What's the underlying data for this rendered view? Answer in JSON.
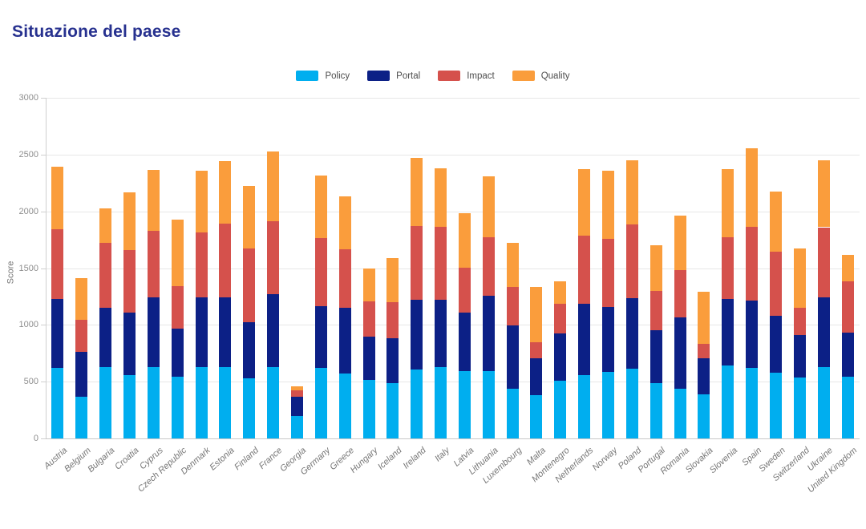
{
  "title": "Situazione del paese",
  "theme": {
    "title_color": "#27318F",
    "gridline_color": "#E7E7E7",
    "axis_color": "#CFCFCF",
    "tick_label_color": "#8E8E8E",
    "category_label_color": "#757575",
    "legend_text_color": "#4D4D4D",
    "background": "#FFFFFF"
  },
  "chart_data": {
    "type": "bar",
    "stacked": true,
    "title": "Situazione del paese",
    "xlabel": "",
    "ylabel": "Score",
    "ylim": [
      0,
      3000
    ],
    "yticks": [
      0,
      500,
      1000,
      1500,
      2000,
      2500,
      3000
    ],
    "grid": true,
    "legend_position": "top-center",
    "categories": [
      "Austria",
      "Belgium",
      "Bulgaria",
      "Croatia",
      "Cyprus",
      "Czech Republic",
      "Denmark",
      "Estonia",
      "Finland",
      "France",
      "Georgia",
      "Germany",
      "Greece",
      "Hungary",
      "Iceland",
      "Ireland",
      "Italy",
      "Latvia",
      "Lithuania",
      "Luxembourg",
      "Malta",
      "Montenegro",
      "Netherlands",
      "Norway",
      "Poland",
      "Portugal",
      "Romania",
      "Slovakia",
      "Slovenia",
      "Spain",
      "Sweden",
      "Switzerland",
      "Ukraine",
      "United Kingdom"
    ],
    "series": [
      {
        "name": "Policy",
        "color": "#00AEEF",
        "values": [
          620,
          365,
          625,
          560,
          630,
          545,
          630,
          630,
          530,
          630,
          195,
          620,
          575,
          515,
          490,
          605,
          630,
          590,
          595,
          440,
          380,
          510,
          560,
          585,
          615,
          490,
          440,
          385,
          640,
          620,
          580,
          535,
          630,
          545
        ]
      },
      {
        "name": "Portal",
        "color": "#0C2086",
        "values": [
          605,
          395,
          525,
          550,
          610,
          425,
          610,
          610,
          495,
          640,
          175,
          545,
          575,
          380,
          390,
          615,
          590,
          520,
          660,
          555,
          325,
          415,
          625,
          575,
          620,
          460,
          625,
          320,
          590,
          595,
          500,
          375,
          610,
          390
        ]
      },
      {
        "name": "Impact",
        "color": "#D5514C",
        "values": [
          615,
          285,
          570,
          550,
          585,
          370,
          575,
          650,
          650,
          645,
          55,
          600,
          515,
          315,
          320,
          650,
          645,
          395,
          520,
          340,
          140,
          260,
          600,
          600,
          650,
          350,
          420,
          130,
          545,
          650,
          565,
          240,
          620,
          450
        ]
      },
      {
        "name": "Quality",
        "color": "#FA9D3C",
        "values": [
          550,
          370,
          305,
          510,
          540,
          590,
          545,
          550,
          550,
          615,
          35,
          550,
          465,
          285,
          390,
          600,
          515,
          480,
          530,
          385,
          490,
          200,
          590,
          600,
          565,
          400,
          475,
          460,
          600,
          690,
          530,
          525,
          590,
          230
        ]
      }
    ]
  }
}
